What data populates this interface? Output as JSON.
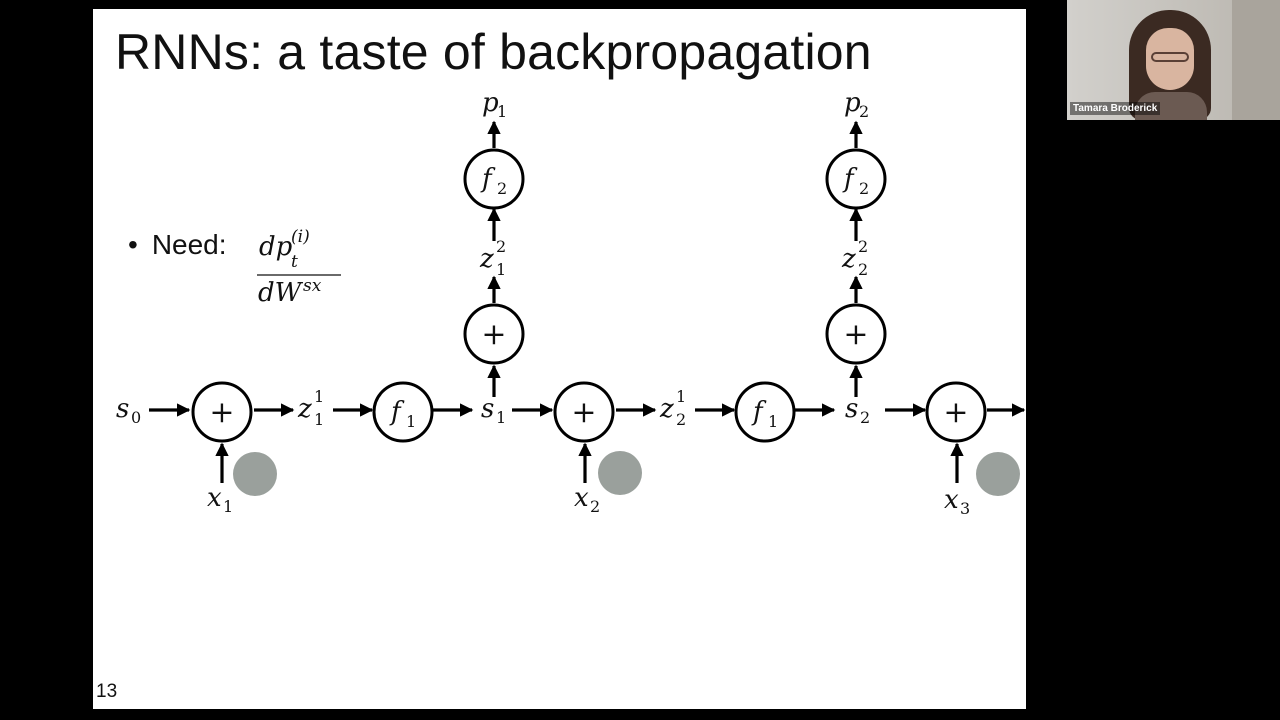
{
  "slide": {
    "title": "RNNs: a taste of backpropagation",
    "slide_number": "13",
    "bullet": {
      "marker": "•",
      "label": "Need:",
      "numerator": "dp",
      "numerator_sub": "t",
      "numerator_sup": "(i)",
      "denominator": "dW",
      "denominator_sup": "sx"
    }
  },
  "diagram": {
    "plus_symbol": "+",
    "s_labels": [
      {
        "base": "s",
        "sub": "0"
      },
      {
        "base": "s",
        "sub": "1"
      },
      {
        "base": "s",
        "sub": "2"
      }
    ],
    "x_labels": [
      {
        "base": "x",
        "sub": "1"
      },
      {
        "base": "x",
        "sub": "2"
      },
      {
        "base": "x",
        "sub": "3"
      }
    ],
    "z1_labels": [
      {
        "base": "z",
        "sup": "1",
        "sub": "1"
      },
      {
        "base": "z",
        "sup": "1",
        "sub": "2"
      }
    ],
    "z2_labels": [
      {
        "base": "z",
        "sup": "2",
        "sub": "1"
      },
      {
        "base": "z",
        "sup": "2",
        "sub": "2"
      }
    ],
    "f1_labels": [
      {
        "base": "f",
        "sub": "1"
      },
      {
        "base": "f",
        "sub": "1"
      }
    ],
    "f2_labels": [
      {
        "base": "f",
        "sub": "2"
      },
      {
        "base": "f",
        "sub": "2"
      }
    ],
    "p_labels": [
      {
        "base": "p",
        "sub": "1"
      },
      {
        "base": "p",
        "sub": "2"
      }
    ],
    "highlight_color": "#9aa09c"
  },
  "video": {
    "participant_name": "Tamara Broderick"
  }
}
